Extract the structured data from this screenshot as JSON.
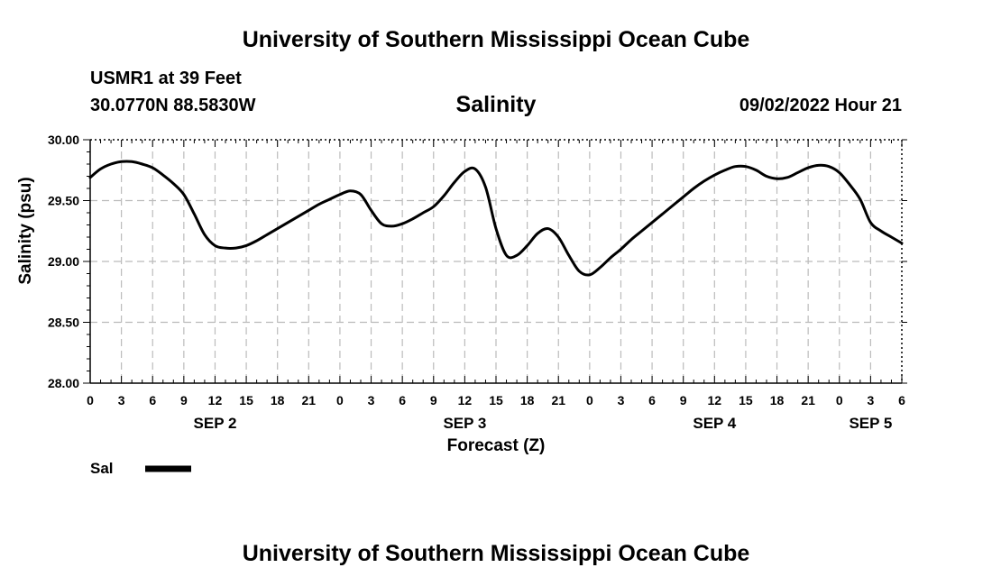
{
  "header": {
    "title": "University of Southern Mississippi Ocean Cube",
    "station": "USMR1 at 39 Feet",
    "coords": "30.0770N  88.5830W",
    "timestamp": "09/02/2022 Hour 21"
  },
  "footer": {
    "title": "University of Southern Mississippi Ocean Cube"
  },
  "legend": {
    "label": "Sal"
  },
  "colors": {
    "line": "#000000",
    "grid": "#bbbbbb",
    "background": "#ffffff"
  },
  "chart_data": {
    "type": "line",
    "title": "Salinity",
    "xlabel": "Forecast (Z)",
    "ylabel": "Salinity (psu)",
    "ylim": [
      28.0,
      30.0
    ],
    "xlim": [
      0,
      78
    ],
    "x_unit": "hours after 2022-09-02 00Z",
    "y_ticks": [
      "30.00",
      "29.50",
      "29.00",
      "28.50",
      "28.00"
    ],
    "y_tick_values": [
      30.0,
      29.5,
      29.0,
      28.5,
      28.0
    ],
    "x_tick_hours": [
      0,
      3,
      6,
      9,
      12,
      15,
      18,
      21,
      24,
      27,
      30,
      33,
      36,
      39,
      42,
      45,
      48,
      51,
      54,
      57,
      60,
      63,
      66,
      69,
      72,
      75,
      78
    ],
    "x_tick_labels": [
      "0",
      "3",
      "6",
      "9",
      "12",
      "15",
      "18",
      "21",
      "0",
      "3",
      "6",
      "9",
      "12",
      "15",
      "18",
      "21",
      "0",
      "3",
      "6",
      "9",
      "12",
      "15",
      "18",
      "21",
      "0",
      "3",
      "6"
    ],
    "day_labels": [
      {
        "label": "SEP 2",
        "hour": 12
      },
      {
        "label": "SEP 3",
        "hour": 36
      },
      {
        "label": "SEP 4",
        "hour": 60
      },
      {
        "label": "SEP 5",
        "hour": 75
      }
    ],
    "grid": true,
    "series": [
      {
        "name": "Sal",
        "x": [
          0,
          1,
          2,
          3,
          4,
          5,
          6,
          7,
          8,
          9,
          10,
          11,
          12,
          13,
          14,
          15,
          16,
          17,
          18,
          19,
          20,
          21,
          22,
          23,
          24,
          25,
          26,
          27,
          28,
          29,
          30,
          31,
          32,
          33,
          34,
          35,
          36,
          37,
          38,
          39,
          40,
          41,
          42,
          43,
          44,
          45,
          46,
          47,
          48,
          49,
          50,
          51,
          52,
          53,
          54,
          55,
          56,
          57,
          58,
          59,
          60,
          61,
          62,
          63,
          64,
          65,
          66,
          67,
          68,
          69,
          70,
          71,
          72,
          73,
          74,
          75,
          76,
          77,
          78
        ],
        "values": [
          29.69,
          29.76,
          29.8,
          29.82,
          29.82,
          29.8,
          29.77,
          29.71,
          29.64,
          29.55,
          29.39,
          29.22,
          29.13,
          29.11,
          29.11,
          29.13,
          29.17,
          29.22,
          29.27,
          29.32,
          29.37,
          29.42,
          29.47,
          29.51,
          29.55,
          29.58,
          29.55,
          29.42,
          29.31,
          29.29,
          29.31,
          29.35,
          29.4,
          29.45,
          29.54,
          29.65,
          29.74,
          29.76,
          29.61,
          29.27,
          29.05,
          29.05,
          29.13,
          29.23,
          29.27,
          29.2,
          29.05,
          28.92,
          28.89,
          28.95,
          29.03,
          29.1,
          29.18,
          29.25,
          29.32,
          29.39,
          29.46,
          29.53,
          29.6,
          29.66,
          29.71,
          29.75,
          29.78,
          29.78,
          29.75,
          29.7,
          29.68,
          29.69,
          29.73,
          29.77,
          29.79,
          29.78,
          29.73,
          29.63,
          29.51,
          29.32,
          29.25,
          29.2,
          29.15
        ]
      }
    ]
  }
}
